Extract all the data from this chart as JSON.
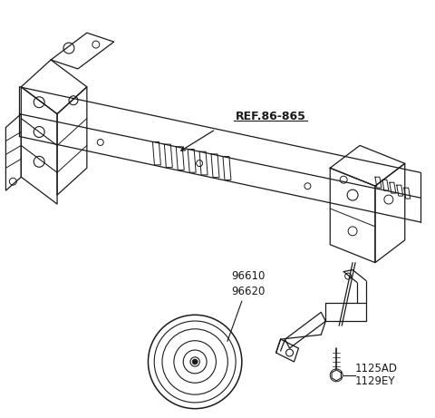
{
  "background_color": "#ffffff",
  "line_color": "#1a1a1a",
  "label_ref": "REF.86-865",
  "label_96610": "96610",
  "label_96620": "96620",
  "label_bolt1": "1125AD",
  "label_bolt2": "1129EY",
  "fig_width": 4.8,
  "fig_height": 4.61,
  "dpi": 100
}
